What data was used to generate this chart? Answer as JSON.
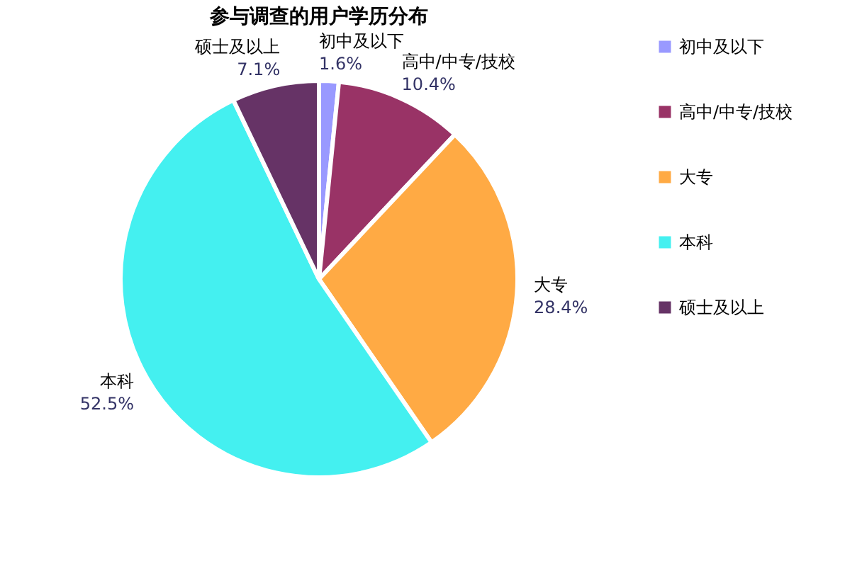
{
  "chart_data": {
    "type": "pie",
    "title": "参与调查的用户学历分布",
    "categories": [
      "初中及以下",
      "高中/中专/技校",
      "大专",
      "本科",
      "硕士及以上"
    ],
    "values": [
      1.6,
      10.4,
      28.4,
      52.5,
      7.1
    ],
    "value_labels": [
      "1.6%",
      "10.4%",
      "28.4%",
      "52.5%",
      "7.1%"
    ],
    "colors": [
      "#9999ff",
      "#993366",
      "#ffaa44",
      "#44f0f0",
      "#663366"
    ],
    "legend": "right"
  }
}
